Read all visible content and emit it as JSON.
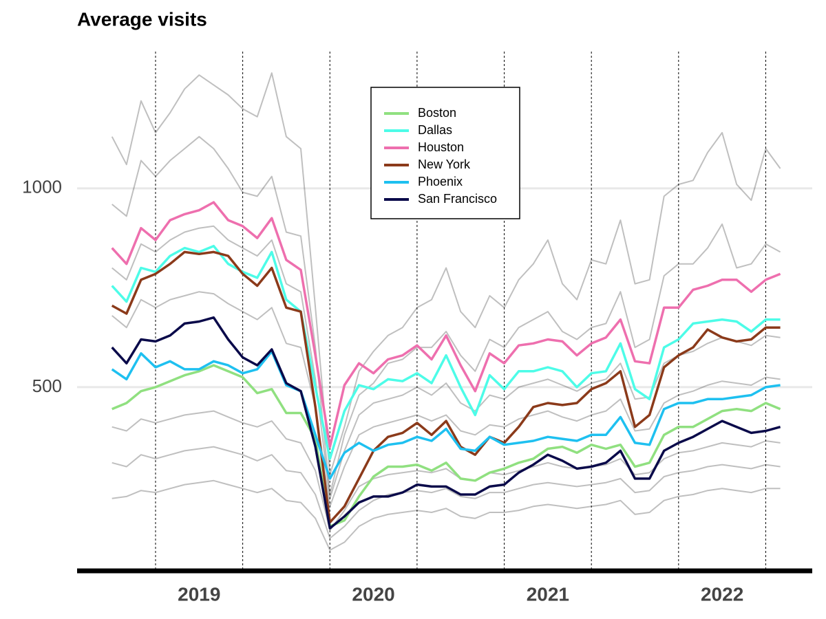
{
  "chart_data": {
    "type": "line",
    "title": "Average visits",
    "categories": [
      null,
      null,
      null,
      null,
      null,
      null,
      null,
      null,
      null,
      null,
      null,
      null,
      null,
      null,
      null,
      null,
      null,
      null,
      null,
      null,
      null,
      null,
      null,
      null,
      null,
      null,
      null,
      null,
      null,
      null,
      null,
      null,
      null,
      null,
      null,
      null,
      null,
      null,
      null,
      null,
      null,
      null,
      null,
      null,
      null,
      null,
      null
    ],
    "xlim": [
      -2.4,
      48.2
    ],
    "xticks": [
      {
        "value": 6,
        "label": "2019"
      },
      {
        "value": 18,
        "label": "2020"
      },
      {
        "value": 30,
        "label": "2021"
      },
      {
        "value": 42,
        "label": "2022"
      }
    ],
    "vlines": [
      3,
      9,
      15,
      21,
      27,
      33,
      39,
      45
    ],
    "ylim": [
      38,
      1344
    ],
    "yticks": [
      500,
      1000
    ],
    "grid": true,
    "legend": "top",
    "background_series": [
      {
        "color": "#000000",
        "values": [
          1130,
          1060,
          1220,
          1140,
          1190,
          1250,
          1285,
          1260,
          1235,
          1200,
          1180,
          1290,
          1130,
          1100,
          700,
          280,
          400,
          540,
          590,
          630,
          650,
          700,
          720,
          800,
          690,
          650,
          730,
          700,
          770,
          810,
          870,
          760,
          720,
          820,
          810,
          920,
          760,
          770,
          980,
          1010,
          1020,
          1090,
          1140,
          1010,
          970,
          1100,
          1050
        ]
      },
      {
        "color": "#000000",
        "values": [
          960,
          930,
          1070,
          1030,
          1070,
          1100,
          1130,
          1100,
          1050,
          990,
          980,
          1030,
          890,
          880,
          600,
          230,
          380,
          480,
          510,
          560,
          570,
          600,
          600,
          640,
          580,
          540,
          620,
          600,
          650,
          670,
          690,
          640,
          620,
          650,
          660,
          740,
          600,
          620,
          780,
          810,
          810,
          850,
          910,
          800,
          810,
          860,
          840
        ]
      },
      {
        "color": "#000000",
        "values": [
          800,
          770,
          860,
          840,
          870,
          890,
          900,
          905,
          870,
          850,
          830,
          870,
          760,
          740,
          520,
          220,
          340,
          430,
          460,
          470,
          480,
          500,
          480,
          510,
          460,
          440,
          480,
          470,
          500,
          510,
          520,
          505,
          490,
          510,
          520,
          560,
          470,
          475,
          560,
          580,
          590,
          610,
          625,
          615,
          605,
          630,
          625
        ]
      },
      {
        "color": "#000000",
        "values": [
          680,
          650,
          720,
          700,
          720,
          730,
          740,
          735,
          710,
          690,
          670,
          700,
          610,
          600,
          450,
          200,
          300,
          380,
          400,
          410,
          420,
          430,
          415,
          430,
          390,
          380,
          405,
          400,
          420,
          430,
          440,
          425,
          415,
          430,
          440,
          470,
          390,
          395,
          460,
          480,
          490,
          505,
          515,
          510,
          505,
          525,
          520
        ]
      },
      {
        "color": "#000000",
        "values": [
          400,
          390,
          420,
          410,
          420,
          430,
          435,
          440,
          425,
          410,
          400,
          415,
          370,
          360,
          290,
          140,
          190,
          250,
          270,
          280,
          285,
          290,
          285,
          295,
          270,
          265,
          285,
          280,
          290,
          300,
          310,
          300,
          295,
          300,
          305,
          320,
          280,
          285,
          320,
          335,
          340,
          350,
          360,
          355,
          350,
          365,
          360
        ]
      },
      {
        "color": "#000000",
        "values": [
          310,
          300,
          330,
          320,
          330,
          340,
          345,
          350,
          340,
          330,
          315,
          330,
          290,
          285,
          230,
          120,
          150,
          190,
          215,
          230,
          235,
          240,
          235,
          245,
          225,
          220,
          235,
          235,
          245,
          255,
          260,
          255,
          250,
          255,
          260,
          270,
          235,
          240,
          275,
          285,
          290,
          300,
          305,
          300,
          295,
          305,
          300
        ]
      },
      {
        "color": "#000000",
        "values": [
          220,
          225,
          240,
          235,
          245,
          255,
          260,
          265,
          255,
          245,
          235,
          245,
          215,
          210,
          170,
          90,
          110,
          150,
          170,
          180,
          185,
          190,
          185,
          195,
          175,
          170,
          185,
          185,
          190,
          200,
          205,
          200,
          195,
          200,
          205,
          215,
          180,
          185,
          215,
          225,
          230,
          240,
          245,
          240,
          235,
          245,
          245
        ]
      }
    ],
    "series": [
      {
        "name": "Boston",
        "color": "#90e080",
        "values": [
          445,
          460,
          490,
          500,
          515,
          530,
          540,
          555,
          540,
          525,
          485,
          495,
          435,
          435,
          370,
          150,
          165,
          225,
          275,
          300,
          300,
          305,
          290,
          310,
          270,
          265,
          285,
          295,
          310,
          320,
          345,
          350,
          335,
          355,
          345,
          355,
          300,
          310,
          380,
          400,
          400,
          420,
          440,
          445,
          440,
          460,
          445
        ]
      },
      {
        "name": "Dallas",
        "color": "#4dfce8",
        "values": [
          755,
          715,
          800,
          790,
          830,
          850,
          840,
          855,
          810,
          790,
          775,
          840,
          720,
          690,
          500,
          320,
          440,
          505,
          495,
          520,
          515,
          535,
          510,
          580,
          500,
          430,
          530,
          495,
          540,
          540,
          550,
          540,
          500,
          535,
          540,
          610,
          495,
          470,
          600,
          620,
          660,
          665,
          670,
          665,
          640,
          670,
          670
        ]
      },
      {
        "name": "Houston",
        "color": "#ee6fae",
        "values": [
          850,
          810,
          900,
          870,
          920,
          935,
          945,
          965,
          920,
          905,
          875,
          925,
          820,
          795,
          580,
          350,
          505,
          560,
          535,
          570,
          580,
          605,
          570,
          630,
          555,
          490,
          585,
          560,
          605,
          610,
          620,
          615,
          580,
          610,
          625,
          670,
          565,
          560,
          700,
          700,
          745,
          755,
          770,
          770,
          740,
          770,
          785
        ]
      },
      {
        "name": "New York",
        "color": "#8b3a1a",
        "values": [
          705,
          685,
          770,
          785,
          810,
          840,
          835,
          840,
          830,
          785,
          755,
          800,
          700,
          690,
          450,
          160,
          200,
          270,
          340,
          375,
          385,
          410,
          380,
          415,
          350,
          330,
          375,
          360,
          400,
          450,
          460,
          455,
          460,
          495,
          510,
          540,
          400,
          430,
          550,
          580,
          600,
          645,
          625,
          615,
          620,
          650,
          650
        ]
      },
      {
        "name": "Phoenix",
        "color": "#1ec0f0",
        "values": [
          545,
          520,
          585,
          550,
          565,
          545,
          545,
          565,
          555,
          535,
          545,
          590,
          505,
          490,
          380,
          270,
          335,
          360,
          340,
          355,
          360,
          375,
          365,
          395,
          345,
          340,
          375,
          355,
          360,
          365,
          375,
          370,
          365,
          380,
          380,
          425,
          360,
          355,
          445,
          460,
          460,
          470,
          470,
          475,
          480,
          500,
          505
        ]
      },
      {
        "name": "San Francisco",
        "color": "#0a0a4a",
        "values": [
          600,
          560,
          620,
          615,
          630,
          660,
          665,
          675,
          620,
          575,
          555,
          595,
          510,
          490,
          350,
          145,
          175,
          210,
          225,
          225,
          235,
          255,
          250,
          250,
          230,
          230,
          250,
          255,
          285,
          305,
          330,
          315,
          295,
          300,
          310,
          340,
          270,
          270,
          340,
          360,
          375,
          395,
          415,
          400,
          385,
          390,
          400
        ]
      }
    ]
  }
}
